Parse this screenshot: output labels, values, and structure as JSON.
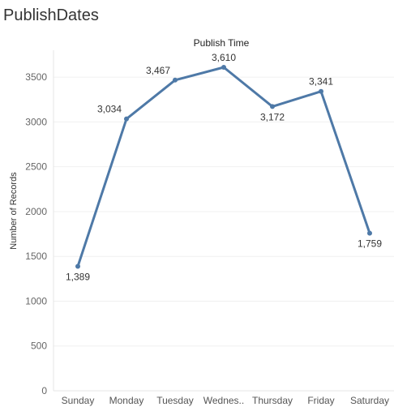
{
  "sheet": {
    "title": "PublishDates"
  },
  "chart_data": {
    "type": "line",
    "title": "Publish Time",
    "xlabel": "",
    "ylabel": "Number of Records",
    "categories": [
      "Sunday",
      "Monday",
      "Tuesday",
      "Wednes..",
      "Thursday",
      "Friday",
      "Saturday"
    ],
    "series": [
      {
        "values": [
          1389,
          3034,
          3467,
          3610,
          3172,
          3341,
          1759
        ],
        "labels": [
          "1,389",
          "3,034",
          "3,467",
          "3,610",
          "3,172",
          "3,341",
          "1,759"
        ],
        "color": "#4e79a7"
      }
    ],
    "yticks": [
      0,
      500,
      1000,
      1500,
      2000,
      2500,
      3000,
      3500
    ],
    "ylim": [
      0,
      3800
    ],
    "grid": true,
    "legend": "none"
  }
}
